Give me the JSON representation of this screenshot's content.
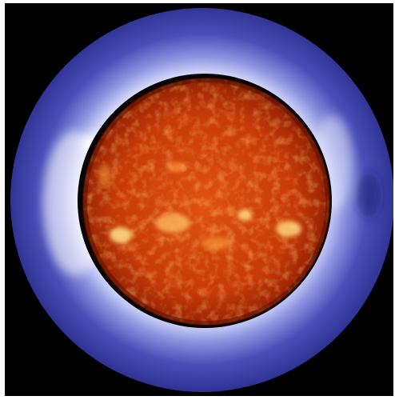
{
  "image": {
    "subject": "",
    "colors": {
      "background": "#000000",
      "frame": "#ffffff",
      "corona_outer": "#3a3fa8",
      "corona_inner": "#e8ecff",
      "occulter_edge": "#0a0505",
      "disk_core": "#d2440c",
      "disk_edge": "#8a1a02",
      "active_region": "#ffd27a"
    }
  }
}
